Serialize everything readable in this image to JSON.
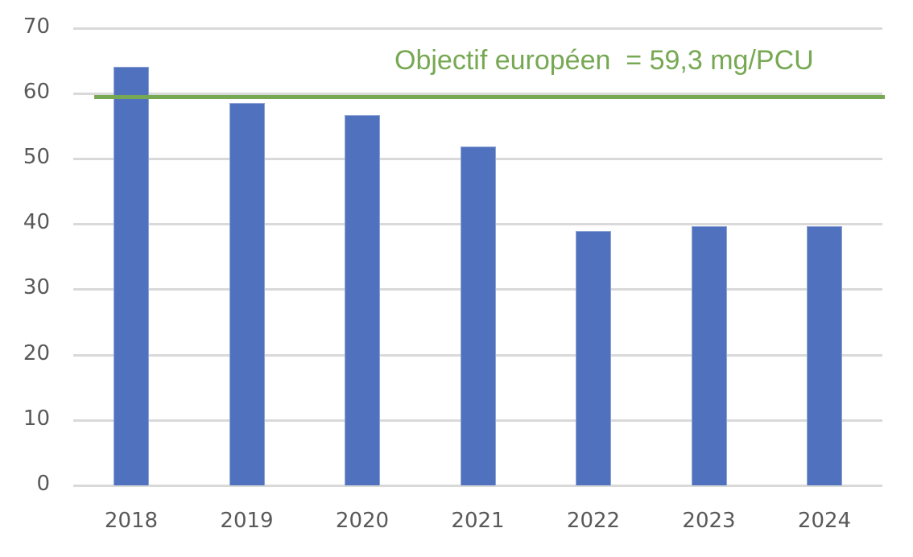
{
  "chart_data": {
    "type": "bar",
    "title": "",
    "xlabel": "",
    "ylabel": "",
    "categories": [
      "2018",
      "2019",
      "2020",
      "2021",
      "2022",
      "2023",
      "2024"
    ],
    "values": [
      64.0,
      58.5,
      56.7,
      51.9,
      38.9,
      39.6,
      39.6
    ],
    "ylim": [
      0,
      70
    ],
    "yticks": [
      0,
      10,
      20,
      30,
      40,
      50,
      60,
      70
    ],
    "grid": true,
    "legend": "none",
    "bar_color": "#4f71be",
    "reference_line": {
      "value": 59.3,
      "label": "Objectif européen  = 59,3 mg/PCU",
      "color": "#77a853"
    }
  }
}
